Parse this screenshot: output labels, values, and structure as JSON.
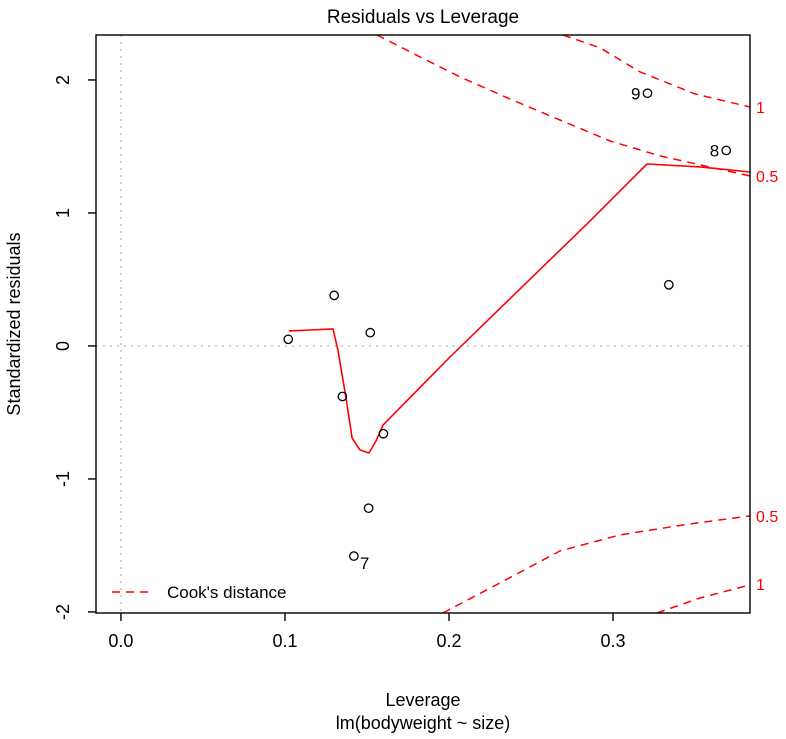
{
  "window": {
    "background": "#ffffff"
  },
  "chart_data": {
    "type": "scatter",
    "title": "Residuals vs Leverage",
    "xlabel": "Leverage",
    "xlabel_sub": "lm(bodyweight ~ size)",
    "ylabel": "Standardized residuals",
    "xlim": [
      -0.0152,
      0.3835
    ],
    "ylim": [
      -2.008,
      2.338
    ],
    "grid": "reference-lines-only",
    "reference_lines": {
      "h": 0,
      "v": 0
    },
    "x_ticks": [
      {
        "value": 0.0,
        "label": "0.0"
      },
      {
        "value": 0.1,
        "label": "0.1"
      },
      {
        "value": 0.2,
        "label": "0.2"
      },
      {
        "value": 0.3,
        "label": "0.3"
      }
    ],
    "y_ticks": [
      {
        "value": -2,
        "label": "-2"
      },
      {
        "value": -1,
        "label": "-1"
      },
      {
        "value": 0,
        "label": "0"
      },
      {
        "value": 1,
        "label": "1"
      },
      {
        "value": 2,
        "label": "2"
      }
    ],
    "points": [
      {
        "x": 0.102,
        "y": 0.05
      },
      {
        "x": 0.13,
        "y": 0.38
      },
      {
        "x": 0.152,
        "y": 0.1
      },
      {
        "x": 0.135,
        "y": -0.38
      },
      {
        "x": 0.16,
        "y": -0.66
      },
      {
        "x": 0.151,
        "y": -1.22
      },
      {
        "x": 0.142,
        "y": -1.58,
        "label": "7",
        "label_side": "bottomright"
      },
      {
        "x": 0.334,
        "y": 0.46
      },
      {
        "x": 0.321,
        "y": 1.9,
        "label": "9",
        "label_side": "left"
      },
      {
        "x": 0.369,
        "y": 1.47,
        "label": "8",
        "label_side": "left"
      }
    ],
    "smooth_line": [
      [
        0.1024,
        0.113
      ],
      [
        0.1152,
        0.12
      ],
      [
        0.1293,
        0.128
      ],
      [
        0.1323,
        -0.03
      ],
      [
        0.1372,
        -0.391
      ],
      [
        0.1409,
        -0.692
      ],
      [
        0.1457,
        -0.782
      ],
      [
        0.1512,
        -0.805
      ],
      [
        0.1555,
        -0.714
      ],
      [
        0.1598,
        -0.594
      ],
      [
        0.2006,
        -0.083
      ],
      [
        0.2433,
        0.429
      ],
      [
        0.286,
        0.94
      ],
      [
        0.3207,
        1.368
      ],
      [
        0.353,
        1.346
      ],
      [
        0.3835,
        1.308
      ]
    ],
    "cook_contours": [
      {
        "level": "0.5",
        "position": "top",
        "points": [
          [
            0.1561,
            2.338
          ],
          [
            0.1823,
            2.173
          ],
          [
            0.2067,
            2.023
          ],
          [
            0.2372,
            1.857
          ],
          [
            0.2677,
            1.699
          ],
          [
            0.2982,
            1.541
          ],
          [
            0.3287,
            1.429
          ],
          [
            0.3561,
            1.353
          ],
          [
            0.3835,
            1.278
          ]
        ],
        "edge_label": "0.5",
        "edge_label_y": 1.271
      },
      {
        "level": "1",
        "position": "top",
        "points": [
          [
            0.2695,
            2.338
          ],
          [
            0.2921,
            2.241
          ],
          [
            0.3165,
            2.06
          ],
          [
            0.35,
            1.895
          ],
          [
            0.3835,
            1.797
          ]
        ],
        "edge_label": "1",
        "edge_label_y": 1.79
      },
      {
        "level": "0.5",
        "position": "bottom",
        "points": [
          [
            0.1963,
            -2.008
          ],
          [
            0.2311,
            -1.782
          ],
          [
            0.2677,
            -1.541
          ],
          [
            0.3043,
            -1.421
          ],
          [
            0.347,
            -1.338
          ],
          [
            0.3835,
            -1.278
          ]
        ],
        "edge_label": "0.5",
        "edge_label_y": -1.286
      },
      {
        "level": "1",
        "position": "bottom",
        "points": [
          [
            0.3268,
            -2.008
          ],
          [
            0.353,
            -1.895
          ],
          [
            0.3835,
            -1.797
          ]
        ],
        "edge_label": "1",
        "edge_label_y": -1.797
      }
    ],
    "legend": {
      "label": "Cook's distance",
      "line_style": "dashed",
      "position": "bottom-left"
    },
    "colors": {
      "contour": "#ff0000",
      "smooth_line": "#ff0000",
      "point_stroke": "#000000",
      "reference_line": "#c0c0c0",
      "axis": "#000000",
      "edge_label": "#ff0000"
    }
  }
}
